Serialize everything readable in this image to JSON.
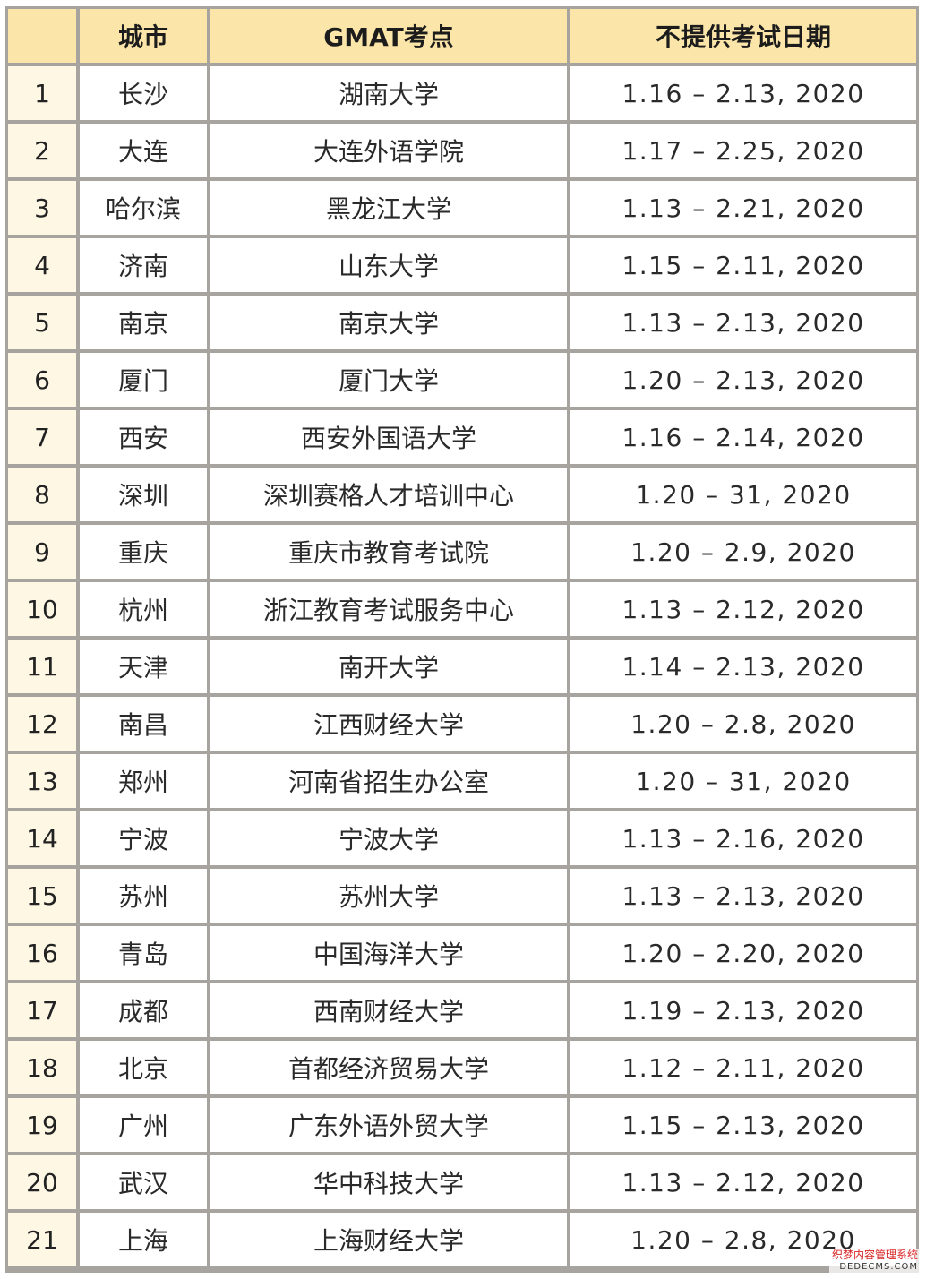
{
  "table": {
    "headers": [
      "",
      "城市",
      "GMAT考点",
      "不提供考试日期"
    ],
    "rows": [
      {
        "no": "1",
        "city": "长沙",
        "center": "湖南大学",
        "dates": "1.16 – 2.13, 2020"
      },
      {
        "no": "2",
        "city": "大连",
        "center": "大连外语学院",
        "dates": "1.17 – 2.25, 2020"
      },
      {
        "no": "3",
        "city": "哈尔滨",
        "center": "黑龙江大学",
        "dates": "1.13 – 2.21, 2020"
      },
      {
        "no": "4",
        "city": "济南",
        "center": "山东大学",
        "dates": "1.15 – 2.11, 2020"
      },
      {
        "no": "5",
        "city": "南京",
        "center": "南京大学",
        "dates": "1.13 – 2.13, 2020"
      },
      {
        "no": "6",
        "city": "厦门",
        "center": "厦门大学",
        "dates": "1.20 – 2.13, 2020"
      },
      {
        "no": "7",
        "city": "西安",
        "center": "西安外国语大学",
        "dates": "1.16 – 2.14, 2020"
      },
      {
        "no": "8",
        "city": "深圳",
        "center": "深圳赛格人才培训中心",
        "dates": "1.20 – 31, 2020"
      },
      {
        "no": "9",
        "city": "重庆",
        "center": "重庆市教育考试院",
        "dates": "1.20 – 2.9, 2020"
      },
      {
        "no": "10",
        "city": "杭州",
        "center": "浙江教育考试服务中心",
        "dates": "1.13 – 2.12, 2020"
      },
      {
        "no": "11",
        "city": "天津",
        "center": "南开大学",
        "dates": "1.14 – 2.13, 2020"
      },
      {
        "no": "12",
        "city": "南昌",
        "center": "江西财经大学",
        "dates": "1.20 – 2.8, 2020"
      },
      {
        "no": "13",
        "city": "郑州",
        "center": "河南省招生办公室",
        "dates": "1.20 – 31, 2020"
      },
      {
        "no": "14",
        "city": "宁波",
        "center": "宁波大学",
        "dates": "1.13 – 2.16, 2020"
      },
      {
        "no": "15",
        "city": "苏州",
        "center": "苏州大学",
        "dates": "1.13 – 2.13, 2020"
      },
      {
        "no": "16",
        "city": "青岛",
        "center": "中国海洋大学",
        "dates": "1.20 – 2.20, 2020"
      },
      {
        "no": "17",
        "city": "成都",
        "center": "西南财经大学",
        "dates": "1.19 – 2.13, 2020"
      },
      {
        "no": "18",
        "city": "北京",
        "center": "首都经济贸易大学",
        "dates": "1.12 – 2.11, 2020"
      },
      {
        "no": "19",
        "city": "广州",
        "center": "广东外语外贸大学",
        "dates": "1.15 – 2.13, 2020"
      },
      {
        "no": "20",
        "city": "武汉",
        "center": "华中科技大学",
        "dates": "1.13 – 2.12, 2020"
      },
      {
        "no": "21",
        "city": "上海",
        "center": "上海财经大学",
        "dates": "1.20 – 2.8, 2020"
      }
    ]
  },
  "watermark": {
    "line1": "织梦内容管理系统",
    "line2": "DEDECMS.COM"
  }
}
